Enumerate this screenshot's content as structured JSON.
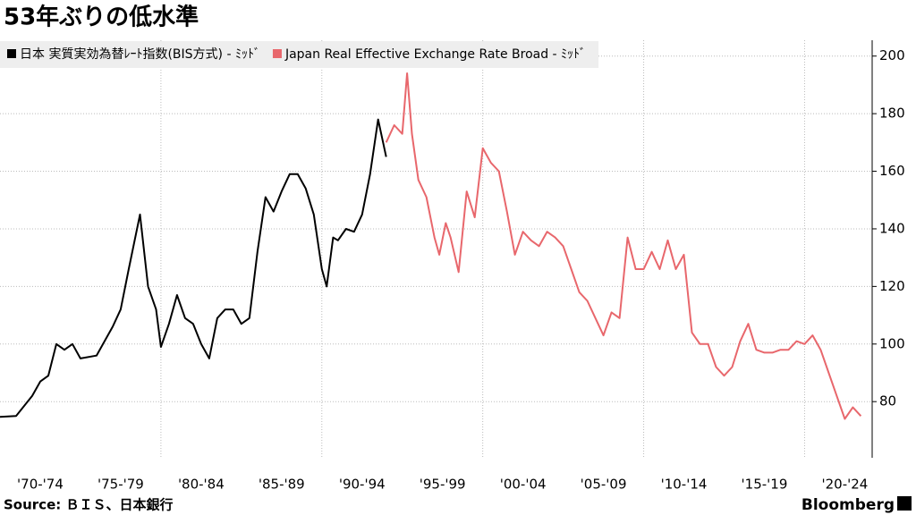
{
  "chart_data": {
    "type": "line",
    "title": "53年ぶりの低水準",
    "source": "Source: ＢＩＳ、日本銀行",
    "brand": "Bloomberg",
    "xlim": [
      1970,
      2024.2
    ],
    "xticks": [
      {
        "value": 1972.5,
        "label": "'70-'74"
      },
      {
        "value": 1977.5,
        "label": "'75-'79"
      },
      {
        "value": 1982.5,
        "label": "'80-'84"
      },
      {
        "value": 1987.5,
        "label": "'85-'89"
      },
      {
        "value": 1992.5,
        "label": "'90-'94"
      },
      {
        "value": 1997.5,
        "label": "'95-'99"
      },
      {
        "value": 2002.5,
        "label": "'00-'04"
      },
      {
        "value": 2007.5,
        "label": "'05-'09"
      },
      {
        "value": 2012.5,
        "label": "'10-'14"
      },
      {
        "value": 2017.5,
        "label": "'15-'19"
      },
      {
        "value": 2022.5,
        "label": "'20-'24"
      }
    ],
    "xgrid": [
      1980,
      1990,
      2000,
      2010,
      2020
    ],
    "ylim": [
      60.5,
      205.5
    ],
    "yticks": [
      80,
      100,
      120,
      140,
      160,
      180,
      200
    ],
    "grid": true,
    "legend": "top-left",
    "series": [
      {
        "name": "日本 実質実効為替ﾚｰﾄ指数(BIS方式) - ﾐｯﾄﾞ",
        "color": "#000000",
        "x": [
          1970,
          1971,
          1972,
          1972.5,
          1973,
          1973.5,
          1974,
          1974.5,
          1975,
          1976,
          1977,
          1977.5,
          1978,
          1978.7,
          1979.2,
          1979.7,
          1980,
          1980.5,
          1981,
          1981.5,
          1982,
          1982.5,
          1983,
          1983.5,
          1984,
          1984.5,
          1985,
          1985.5,
          1986,
          1986.5,
          1987,
          1987.5,
          1988,
          1988.5,
          1989,
          1989.5,
          1990,
          1990.3,
          1990.7,
          1991,
          1991.5,
          1992,
          1992.5,
          1993,
          1993.5,
          1994
        ],
        "values": [
          74.7,
          75,
          82,
          87,
          89,
          100,
          98,
          100,
          95,
          96,
          106,
          112,
          126,
          145,
          120,
          112,
          99,
          107,
          117,
          109,
          107,
          100,
          95,
          109,
          112,
          112,
          107,
          109,
          132,
          151,
          146,
          153,
          159,
          159,
          154,
          145,
          126,
          120,
          137,
          136,
          140,
          139,
          145,
          159,
          178,
          165
        ]
      },
      {
        "name": "Japan Real Effective Exchange Rate Broad - ﾐｯﾄﾞ",
        "color": "#e8676c",
        "x": [
          1994,
          1994.5,
          1995,
          1995.3,
          1995.6,
          1996,
          1996.5,
          1997,
          1997.3,
          1997.7,
          1998,
          1998.5,
          1999,
          1999.5,
          2000,
          2000.5,
          2001,
          2001.5,
          2002,
          2002.5,
          2003,
          2003.5,
          2004,
          2004.5,
          2005,
          2005.5,
          2006,
          2006.5,
          2007,
          2007.5,
          2008,
          2008.5,
          2009,
          2009.5,
          2010,
          2010.5,
          2011,
          2011.5,
          2012,
          2012.5,
          2013,
          2013.5,
          2014,
          2014.5,
          2015,
          2015.5,
          2016,
          2016.5,
          2017,
          2017.5,
          2018,
          2018.5,
          2019,
          2019.5,
          2020,
          2020.5,
          2021,
          2021.5,
          2022,
          2022.5,
          2023,
          2023.5
        ],
        "values": [
          170,
          176,
          173,
          194,
          173,
          157,
          151,
          137,
          131,
          142,
          137,
          125,
          153,
          144,
          168,
          163,
          160,
          146,
          131,
          139,
          136,
          134,
          139,
          137,
          134,
          126,
          118,
          115,
          109,
          103,
          111,
          109,
          137,
          126,
          126,
          132,
          126,
          136,
          126,
          131,
          104,
          100,
          100,
          92,
          89,
          92,
          101,
          107,
          98,
          97,
          97,
          98,
          98,
          101,
          100,
          103,
          98,
          90,
          82,
          74,
          78,
          75
        ]
      }
    ]
  }
}
